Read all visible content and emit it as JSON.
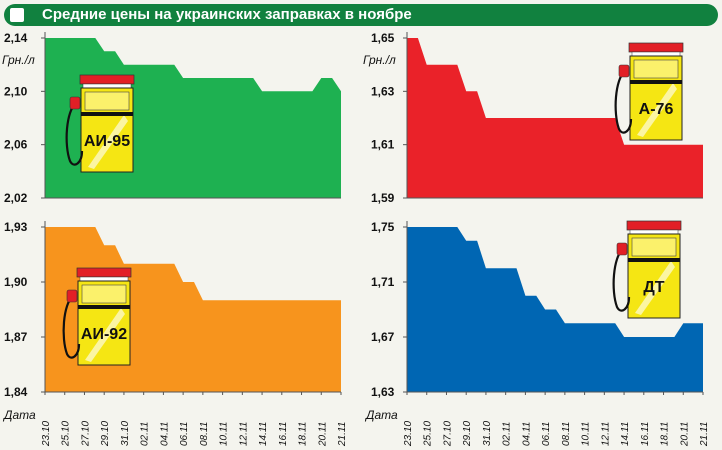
{
  "header": {
    "title": "Средние цены на украинских заправках в ноябре"
  },
  "x_axis_label": "Дата",
  "chart_data": [
    {
      "type": "area",
      "pump_label": "АИ-95",
      "ylabel": "Грн./л",
      "ylim": [
        2.02,
        2.14
      ],
      "yticks": [
        "2,14",
        "2,10",
        "2,06",
        "2,02"
      ],
      "color": "#1eb151",
      "x": [
        "23.10",
        "25.10",
        "27.10",
        "29.10",
        "31.10",
        "02.11",
        "04.11",
        "06.11",
        "08.11",
        "10.11",
        "12.11",
        "14.11",
        "16.11",
        "18.11",
        "20.11",
        "21.11"
      ],
      "series": [
        {
          "values": [
            2.14,
            2.14,
            2.14,
            2.13,
            2.12,
            2.12,
            2.12,
            2.11,
            2.11,
            2.11,
            2.11,
            2.1,
            2.1,
            2.1,
            2.11,
            2.1
          ]
        }
      ]
    },
    {
      "type": "area",
      "pump_label": "А-76",
      "ylabel": "Грн./л",
      "ylim": [
        1.59,
        1.65
      ],
      "yticks": [
        "1,65",
        "1,63",
        "1,61",
        "1,59"
      ],
      "color": "#ea2229",
      "x": [
        "23.10",
        "25.10",
        "27.10",
        "29.10",
        "31.10",
        "02.11",
        "04.11",
        "06.11",
        "08.11",
        "10.11",
        "12.11",
        "14.11",
        "16.11",
        "18.11",
        "20.11",
        "21.11"
      ],
      "series": [
        {
          "values": [
            1.65,
            1.64,
            1.64,
            1.63,
            1.62,
            1.62,
            1.62,
            1.62,
            1.62,
            1.62,
            1.62,
            1.61,
            1.61,
            1.61,
            1.61,
            1.61
          ]
        }
      ]
    },
    {
      "type": "area",
      "pump_label": "АИ-92",
      "ylim": [
        1.84,
        1.93
      ],
      "yticks": [
        "1,93",
        "1,90",
        "1,87",
        "1,84"
      ],
      "color": "#f7941d",
      "x": [
        "23.10",
        "25.10",
        "27.10",
        "29.10",
        "31.10",
        "02.11",
        "04.11",
        "06.11",
        "08.11",
        "10.11",
        "12.11",
        "14.11",
        "16.11",
        "18.11",
        "20.11",
        "21.11"
      ],
      "series": [
        {
          "values": [
            1.93,
            1.93,
            1.93,
            1.92,
            1.91,
            1.91,
            1.91,
            1.9,
            1.89,
            1.89,
            1.89,
            1.89,
            1.89,
            1.89,
            1.89,
            1.89
          ]
        }
      ]
    },
    {
      "type": "area",
      "pump_label": "ДТ",
      "ylim": [
        1.63,
        1.75
      ],
      "yticks": [
        "1,75",
        "1,71",
        "1,67",
        "1,63"
      ],
      "color": "#0066b3",
      "x": [
        "23.10",
        "25.10",
        "27.10",
        "29.10",
        "31.10",
        "02.11",
        "04.11",
        "06.11",
        "08.11",
        "10.11",
        "12.11",
        "14.11",
        "16.11",
        "18.11",
        "20.11",
        "21.11"
      ],
      "series": [
        {
          "values": [
            1.75,
            1.75,
            1.75,
            1.74,
            1.72,
            1.72,
            1.7,
            1.69,
            1.68,
            1.68,
            1.68,
            1.67,
            1.67,
            1.67,
            1.68,
            1.68
          ]
        }
      ]
    }
  ]
}
